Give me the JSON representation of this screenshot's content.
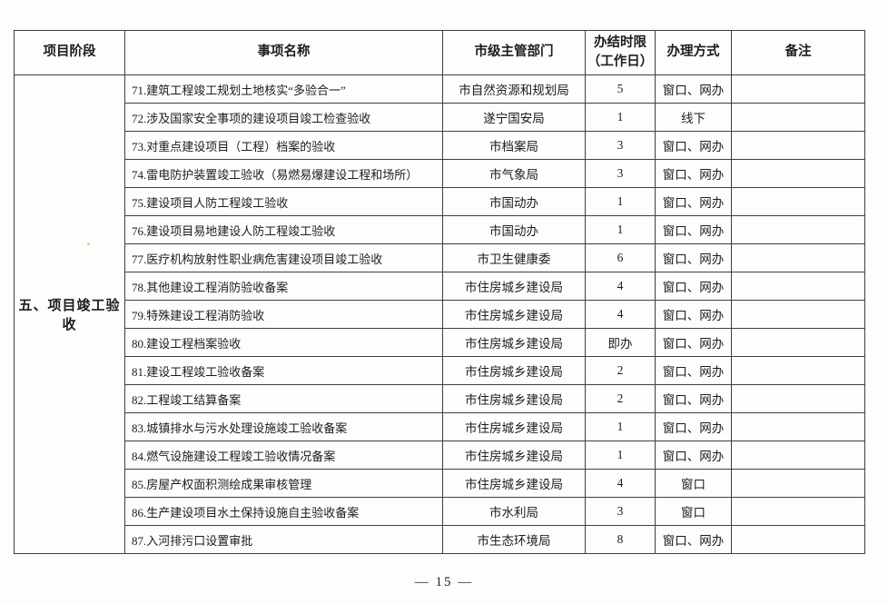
{
  "table": {
    "headers": {
      "stage": "项目阶段",
      "item": "事项名称",
      "department": "市级主管部门",
      "time_limit_line1": "办结时限",
      "time_limit_line2": "（工作日）",
      "method": "办理方式",
      "remark": "备注"
    },
    "stage_label": "五、项目竣工验收",
    "rows": [
      {
        "item": "71.建筑工程竣工规划土地核实“多验合一”",
        "department": "市自然资源和规划局",
        "time_limit": "5",
        "method": "窗口、网办",
        "remark": ""
      },
      {
        "item": "72.涉及国家安全事项的建设项目竣工检查验收",
        "department": "遂宁国安局",
        "time_limit": "1",
        "method": "线下",
        "remark": ""
      },
      {
        "item": "73.对重点建设项目（工程）档案的验收",
        "department": "市档案局",
        "time_limit": "3",
        "method": "窗口、网办",
        "remark": ""
      },
      {
        "item": "74.雷电防护装置竣工验收（易燃易爆建设工程和场所）",
        "department": "市气象局",
        "time_limit": "3",
        "method": "窗口、网办",
        "remark": ""
      },
      {
        "item": "75.建设项目人防工程竣工验收",
        "department": "市国动办",
        "time_limit": "1",
        "method": "窗口、网办",
        "remark": ""
      },
      {
        "item": "76.建设项目易地建设人防工程竣工验收",
        "department": "市国动办",
        "time_limit": "1",
        "method": "窗口、网办",
        "remark": ""
      },
      {
        "item": "77.医疗机构放射性职业病危害建设项目竣工验收",
        "department": "市卫生健康委",
        "time_limit": "6",
        "method": "窗口、网办",
        "remark": ""
      },
      {
        "item": "78.其他建设工程消防验收备案",
        "department": "市住房城乡建设局",
        "time_limit": "4",
        "method": "窗口、网办",
        "remark": ""
      },
      {
        "item": "79.特殊建设工程消防验收",
        "department": "市住房城乡建设局",
        "time_limit": "4",
        "method": "窗口、网办",
        "remark": ""
      },
      {
        "item": "80.建设工程档案验收",
        "department": "市住房城乡建设局",
        "time_limit": "即办",
        "method": "窗口、网办",
        "remark": ""
      },
      {
        "item": "81.建设工程竣工验收备案",
        "department": "市住房城乡建设局",
        "time_limit": "2",
        "method": "窗口、网办",
        "remark": ""
      },
      {
        "item": "82.工程竣工结算备案",
        "department": "市住房城乡建设局",
        "time_limit": "2",
        "method": "窗口、网办",
        "remark": ""
      },
      {
        "item": "83.城镇排水与污水处理设施竣工验收备案",
        "department": "市住房城乡建设局",
        "time_limit": "1",
        "method": "窗口、网办",
        "remark": ""
      },
      {
        "item": "84.燃气设施建设工程竣工验收情况备案",
        "department": "市住房城乡建设局",
        "time_limit": "1",
        "method": "窗口、网办",
        "remark": ""
      },
      {
        "item": "85.房屋产权面积测绘成果审核管理",
        "department": "市住房城乡建设局",
        "time_limit": "4",
        "method": "窗口",
        "remark": ""
      },
      {
        "item": "86.生产建设项目水土保持设施自主验收备案",
        "department": "市水利局",
        "time_limit": "3",
        "method": "窗口",
        "remark": ""
      },
      {
        "item": "87.入河排污口设置审批",
        "department": "市生态环境局",
        "time_limit": "8",
        "method": "窗口、网办",
        "remark": ""
      }
    ]
  },
  "footer": {
    "page_number": "— 15 —"
  }
}
